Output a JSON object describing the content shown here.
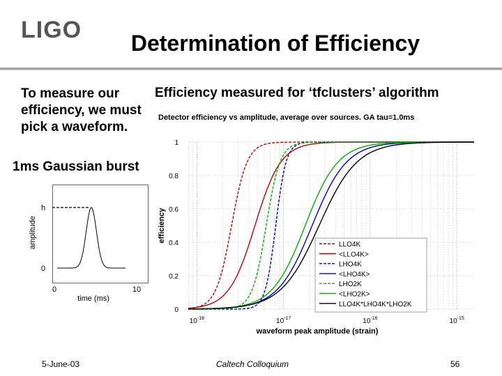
{
  "slide": {
    "logo": "LIGO",
    "title": "Determination of Efficiency",
    "intro": "To measure our efficiency, we must pick a waveform.",
    "chart_heading": "Efficiency measured for ‘tfclusters’ algorithm",
    "burst_label": "1ms Gaussian burst",
    "footer": {
      "date": "5-June-03",
      "venue": "Caltech Colloquium",
      "page": "56"
    },
    "colors": {
      "red": "#c00000",
      "blue": "#0000cc",
      "green": "#00b000",
      "black": "#000000"
    }
  },
  "chart_data": [
    {
      "type": "line",
      "title": "",
      "xlabel": "time (ms)",
      "ylabel": "amplitude",
      "x_ticks": [
        "0",
        "10"
      ],
      "y_ticks": [
        "0",
        "h"
      ],
      "xlim": [
        0,
        10
      ],
      "ylim": [
        0,
        1
      ],
      "series": [
        {
          "x": [
            0,
            2,
            3,
            3.5,
            4,
            4.5,
            5,
            5.5,
            6,
            6.5,
            7,
            8,
            10
          ],
          "y": [
            0,
            0,
            0.01,
            0.05,
            0.2,
            0.6,
            1.0,
            0.6,
            0.2,
            0.05,
            0.01,
            0,
            0
          ]
        }
      ],
      "peak_marker_dashed": true
    },
    {
      "type": "line",
      "title": "Detector efficiency vs amplitude, average over sources. GA   tau=1.0ms",
      "xlabel": "waveform peak amplitude (strain)",
      "ylabel": "efficiency",
      "x_scale": "log",
      "xlim": [
        -18.1,
        -14.8
      ],
      "ylim": [
        0,
        1
      ],
      "x_ticks": [
        "10^-18",
        "10^-17",
        "10^-16",
        "10^-15"
      ],
      "y_ticks": [
        "0",
        "0.2",
        "0.4",
        "0.6",
        "0.8",
        "1"
      ],
      "grid": true,
      "legend": "bottom-right",
      "series": [
        {
          "name": "LLO4K",
          "color": "#c00000",
          "dash": "dashed",
          "midpoint": -17.6,
          "width": 0.09
        },
        {
          "name": "<LLO4K>",
          "color": "#c00000",
          "dash": "solid",
          "midpoint": -17.33,
          "width": 0.15
        },
        {
          "name": "LHO4K",
          "color": "#0000cc",
          "dash": "dashed",
          "midpoint": -17.09,
          "width": 0.06
        },
        {
          "name": "<LHO4K>",
          "color": "#0000cc",
          "dash": "solid",
          "midpoint": -16.67,
          "width": 0.2
        },
        {
          "name": "LHO2K",
          "color": "#00b000",
          "dash": "dashed",
          "midpoint": -17.2,
          "width": 0.08
        },
        {
          "name": "<LHO2K>",
          "color": "#00b000",
          "dash": "solid",
          "midpoint": -16.75,
          "width": 0.19
        },
        {
          "name": "LLO4K*LHO4K*LHO2K",
          "color": "#000000",
          "dash": "solid",
          "midpoint": -16.59,
          "width": 0.22
        }
      ]
    }
  ]
}
